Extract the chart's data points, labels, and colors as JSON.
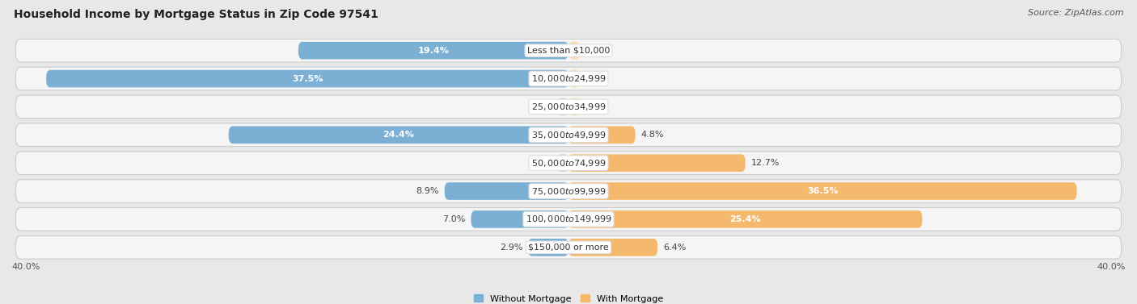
{
  "title": "Household Income by Mortgage Status in Zip Code 97541",
  "source": "Source: ZipAtlas.com",
  "categories": [
    "Less than $10,000",
    "$10,000 to $24,999",
    "$25,000 to $34,999",
    "$35,000 to $49,999",
    "$50,000 to $74,999",
    "$75,000 to $99,999",
    "$100,000 to $149,999",
    "$150,000 or more"
  ],
  "without_mortgage": [
    19.4,
    37.5,
    0.0,
    24.4,
    0.0,
    8.9,
    7.0,
    2.9
  ],
  "with_mortgage": [
    0.0,
    0.0,
    0.0,
    4.8,
    12.7,
    36.5,
    25.4,
    6.4
  ],
  "color_without": "#7bafd4",
  "color_with": "#f5b96e",
  "color_without_light": "#b8d4ea",
  "color_with_light": "#f8d9ad",
  "axis_max": 40.0,
  "bg_color": "#e8e8e8",
  "row_bg": "#f0f0f0",
  "title_fontsize": 10,
  "source_fontsize": 8,
  "label_fontsize": 8,
  "category_fontsize": 8,
  "axis_label_fontsize": 8
}
